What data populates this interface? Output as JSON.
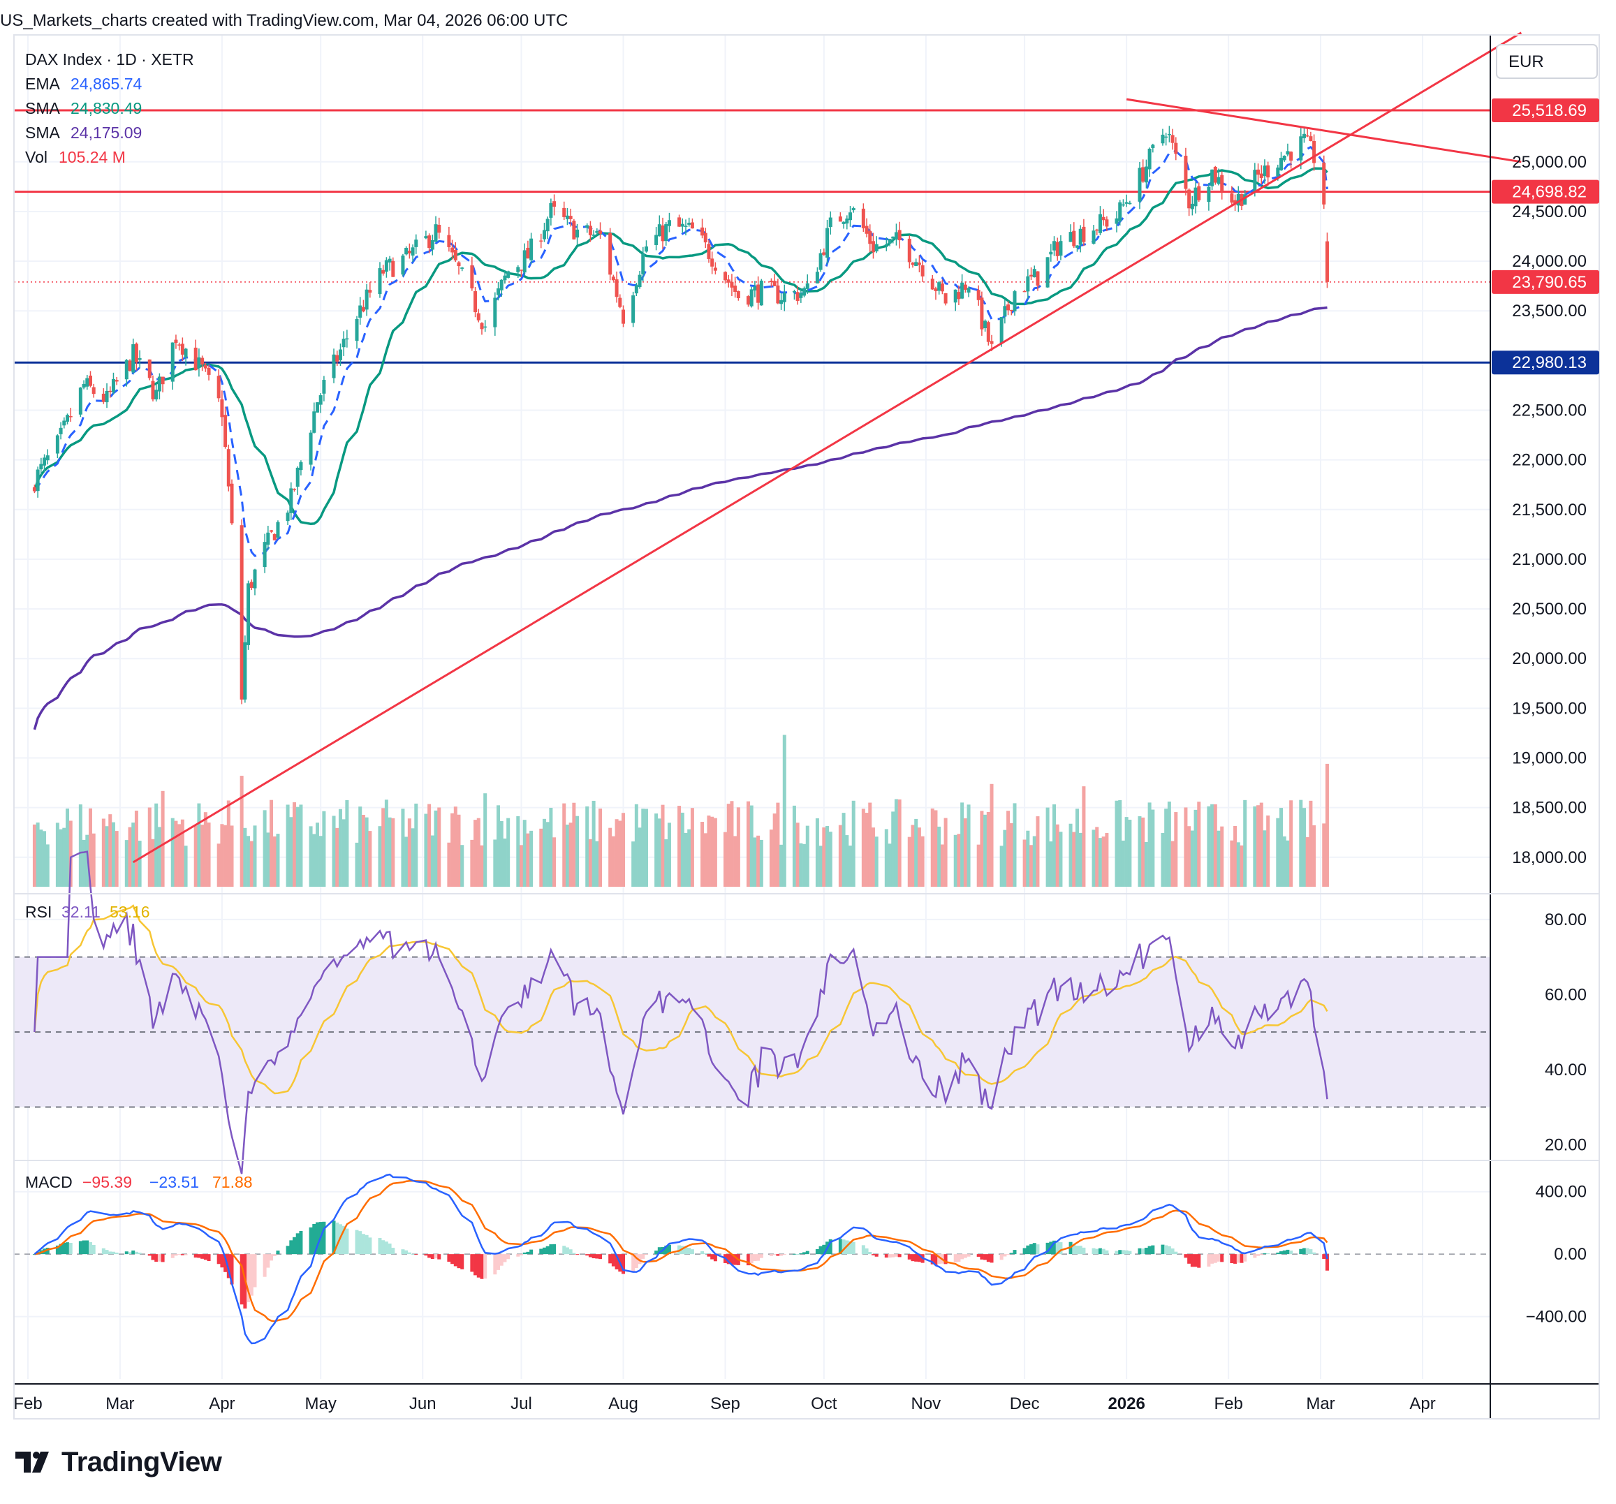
{
  "header": {
    "caption": "US_Markets_charts created with TradingView.com, Mar 04, 2026 06:00 UTC"
  },
  "brand": {
    "name": "TradingView"
  },
  "legend": {
    "symbol": "DAX Index · 1D · XETR",
    "ema_label": "EMA",
    "ema_value": "24,865.74",
    "sma1_label": "SMA",
    "sma1_value": "24,830.49",
    "sma2_label": "SMA",
    "sma2_value": "24,175.09",
    "vol_label": "Vol",
    "vol_value": "105.24 M",
    "rsi_label": "RSI",
    "rsi_value": "32.11",
    "rsi_ma_value": "53.16",
    "macd_label": "MACD",
    "macd_hist": "−95.39",
    "macd_line": "−23.51",
    "macd_signal": "71.88"
  },
  "colors": {
    "up": "#26a69a",
    "down": "#ef5350",
    "ema": "#2962ff",
    "sma50": "#089981",
    "sma200": "#5b33a7",
    "level_red": "#f23645",
    "level_blue": "#0c3299",
    "rsi_line": "#7e57c2",
    "rsi_ma": "#f7c634",
    "rsi_band": "#ede9f8",
    "macd_line": "#2962ff",
    "macd_signal": "#ff6d00"
  },
  "chart_data": {
    "type": "candlestick",
    "currency": "EUR",
    "x_start": "2025-02-01",
    "x_ticks": [
      "Feb",
      "Mar",
      "Apr",
      "May",
      "Jun",
      "Jul",
      "Aug",
      "Sep",
      "Oct",
      "Nov",
      "Dec",
      "2026",
      "Feb",
      "Mar",
      "Apr"
    ],
    "y_ticks": [
      "25,000.00",
      "24,500.00",
      "24,000.00",
      "23,500.00",
      "22,500.00",
      "22,000.00",
      "21,500.00",
      "21,000.00",
      "20,500.00",
      "20,000.00",
      "19,500.00",
      "19,000.00",
      "18,500.00",
      "18,000.00"
    ],
    "y_range": [
      17800,
      26300
    ],
    "price_labels": [
      {
        "value": 25518.69,
        "text": "25,518.69",
        "color": "#f23645"
      },
      {
        "value": 24698.82,
        "text": "24,698.82",
        "color": "#f23645"
      },
      {
        "value": 23790.65,
        "text": "23,790.65",
        "color": "#f23645"
      },
      {
        "value": 22980.13,
        "text": "22,980.13",
        "color": "#0c3299"
      }
    ],
    "horizontal_levels": [
      {
        "value": 25518.69,
        "color": "#f23645"
      },
      {
        "value": 24698.82,
        "color": "#f23645"
      },
      {
        "value": 22980.13,
        "color": "#0c3299"
      }
    ],
    "last_close_line": 23790.65,
    "trendlines": [
      {
        "from": [
          "2025-03-05",
          17950
        ],
        "to": [
          "2026-05-01",
          26300
        ]
      },
      {
        "from": [
          "2026-01-01",
          25630
        ],
        "to": [
          "2026-05-01",
          25000
        ]
      }
    ],
    "ohlc_anchors": [
      [
        "2025-02-01",
        21700
      ],
      [
        "2025-02-10",
        22150
      ],
      [
        "2025-02-18",
        22750
      ],
      [
        "2025-02-25",
        22600
      ],
      [
        "2025-03-05",
        23050
      ],
      [
        "2025-03-12",
        22650
      ],
      [
        "2025-03-18",
        23250
      ],
      [
        "2025-03-26",
        22900
      ],
      [
        "2025-04-01",
        22500
      ],
      [
        "2025-04-04",
        21300
      ],
      [
        "2025-04-07",
        19600
      ],
      [
        "2025-04-09",
        20700
      ],
      [
        "2025-04-14",
        21100
      ],
      [
        "2025-04-22",
        21600
      ],
      [
        "2025-04-30",
        22600
      ],
      [
        "2025-05-12",
        23450
      ],
      [
        "2025-05-20",
        23900
      ],
      [
        "2025-05-28",
        24050
      ],
      [
        "2025-06-05",
        24300
      ],
      [
        "2025-06-12",
        23900
      ],
      [
        "2025-06-20",
        23350
      ],
      [
        "2025-06-27",
        23900
      ],
      [
        "2025-07-03",
        24050
      ],
      [
        "2025-07-10",
        24500
      ],
      [
        "2025-07-18",
        24300
      ],
      [
        "2025-07-25",
        24250
      ],
      [
        "2025-08-01",
        23450
      ],
      [
        "2025-08-08",
        24150
      ],
      [
        "2025-08-15",
        24350
      ],
      [
        "2025-08-22",
        24300
      ],
      [
        "2025-08-28",
        24050
      ],
      [
        "2025-09-05",
        23650
      ],
      [
        "2025-09-12",
        23700
      ],
      [
        "2025-09-19",
        23650
      ],
      [
        "2025-09-26",
        23700
      ],
      [
        "2025-10-03",
        24350
      ],
      [
        "2025-10-09",
        24550
      ],
      [
        "2025-10-16",
        24150
      ],
      [
        "2025-10-24",
        24200
      ],
      [
        "2025-10-31",
        23950
      ],
      [
        "2025-11-07",
        23600
      ],
      [
        "2025-11-14",
        23800
      ],
      [
        "2025-11-21",
        23100
      ],
      [
        "2025-11-28",
        23700
      ],
      [
        "2025-12-05",
        23850
      ],
      [
        "2025-12-12",
        24200
      ],
      [
        "2025-12-19",
        24300
      ],
      [
        "2025-12-29",
        24450
      ],
      [
        "2026-01-06",
        24900
      ],
      [
        "2026-01-13",
        25350
      ],
      [
        "2026-01-20",
        24600
      ],
      [
        "2026-01-27",
        24900
      ],
      [
        "2026-02-03",
        24600
      ],
      [
        "2026-02-10",
        24850
      ],
      [
        "2026-02-17",
        25050
      ],
      [
        "2026-02-24",
        25200
      ],
      [
        "2026-02-27",
        25050
      ],
      [
        "2026-03-02",
        24600
      ],
      [
        "2026-03-03",
        23790.65
      ]
    ],
    "volume_unit": "M",
    "volume_tall_bars": [
      {
        "date": "2025-03-14",
        "value": 82
      },
      {
        "date": "2025-04-07",
        "value": 95
      },
      {
        "date": "2025-06-20",
        "value": 80
      },
      {
        "date": "2025-09-19",
        "value": 130
      },
      {
        "date": "2025-11-21",
        "value": 88
      },
      {
        "date": "2025-12-19",
        "value": 86
      },
      {
        "date": "2026-03-03",
        "value": 105.24
      }
    ],
    "moving_averages": [
      {
        "name": "EMA",
        "last": 24865.74,
        "color": "#2962ff",
        "style": "dashed"
      },
      {
        "name": "SMA",
        "last": 24830.49,
        "color": "#089981"
      },
      {
        "name": "SMA",
        "last": 24175.09,
        "color": "#5b33a7"
      }
    ],
    "rsi": {
      "y_ticks": [
        "80.00",
        "60.00",
        "40.00",
        "20.00"
      ],
      "y_range": [
        18,
        85
      ],
      "bands": [
        30,
        50,
        70
      ],
      "last": 32.11,
      "ma_last": 53.16
    },
    "macd": {
      "y_ticks": [
        "400.00",
        "0.00",
        "−400.00"
      ],
      "y_range": [
        -800,
        600
      ],
      "histogram_last": -95.39,
      "macd_last": -23.51,
      "signal_last": 71.88
    }
  }
}
